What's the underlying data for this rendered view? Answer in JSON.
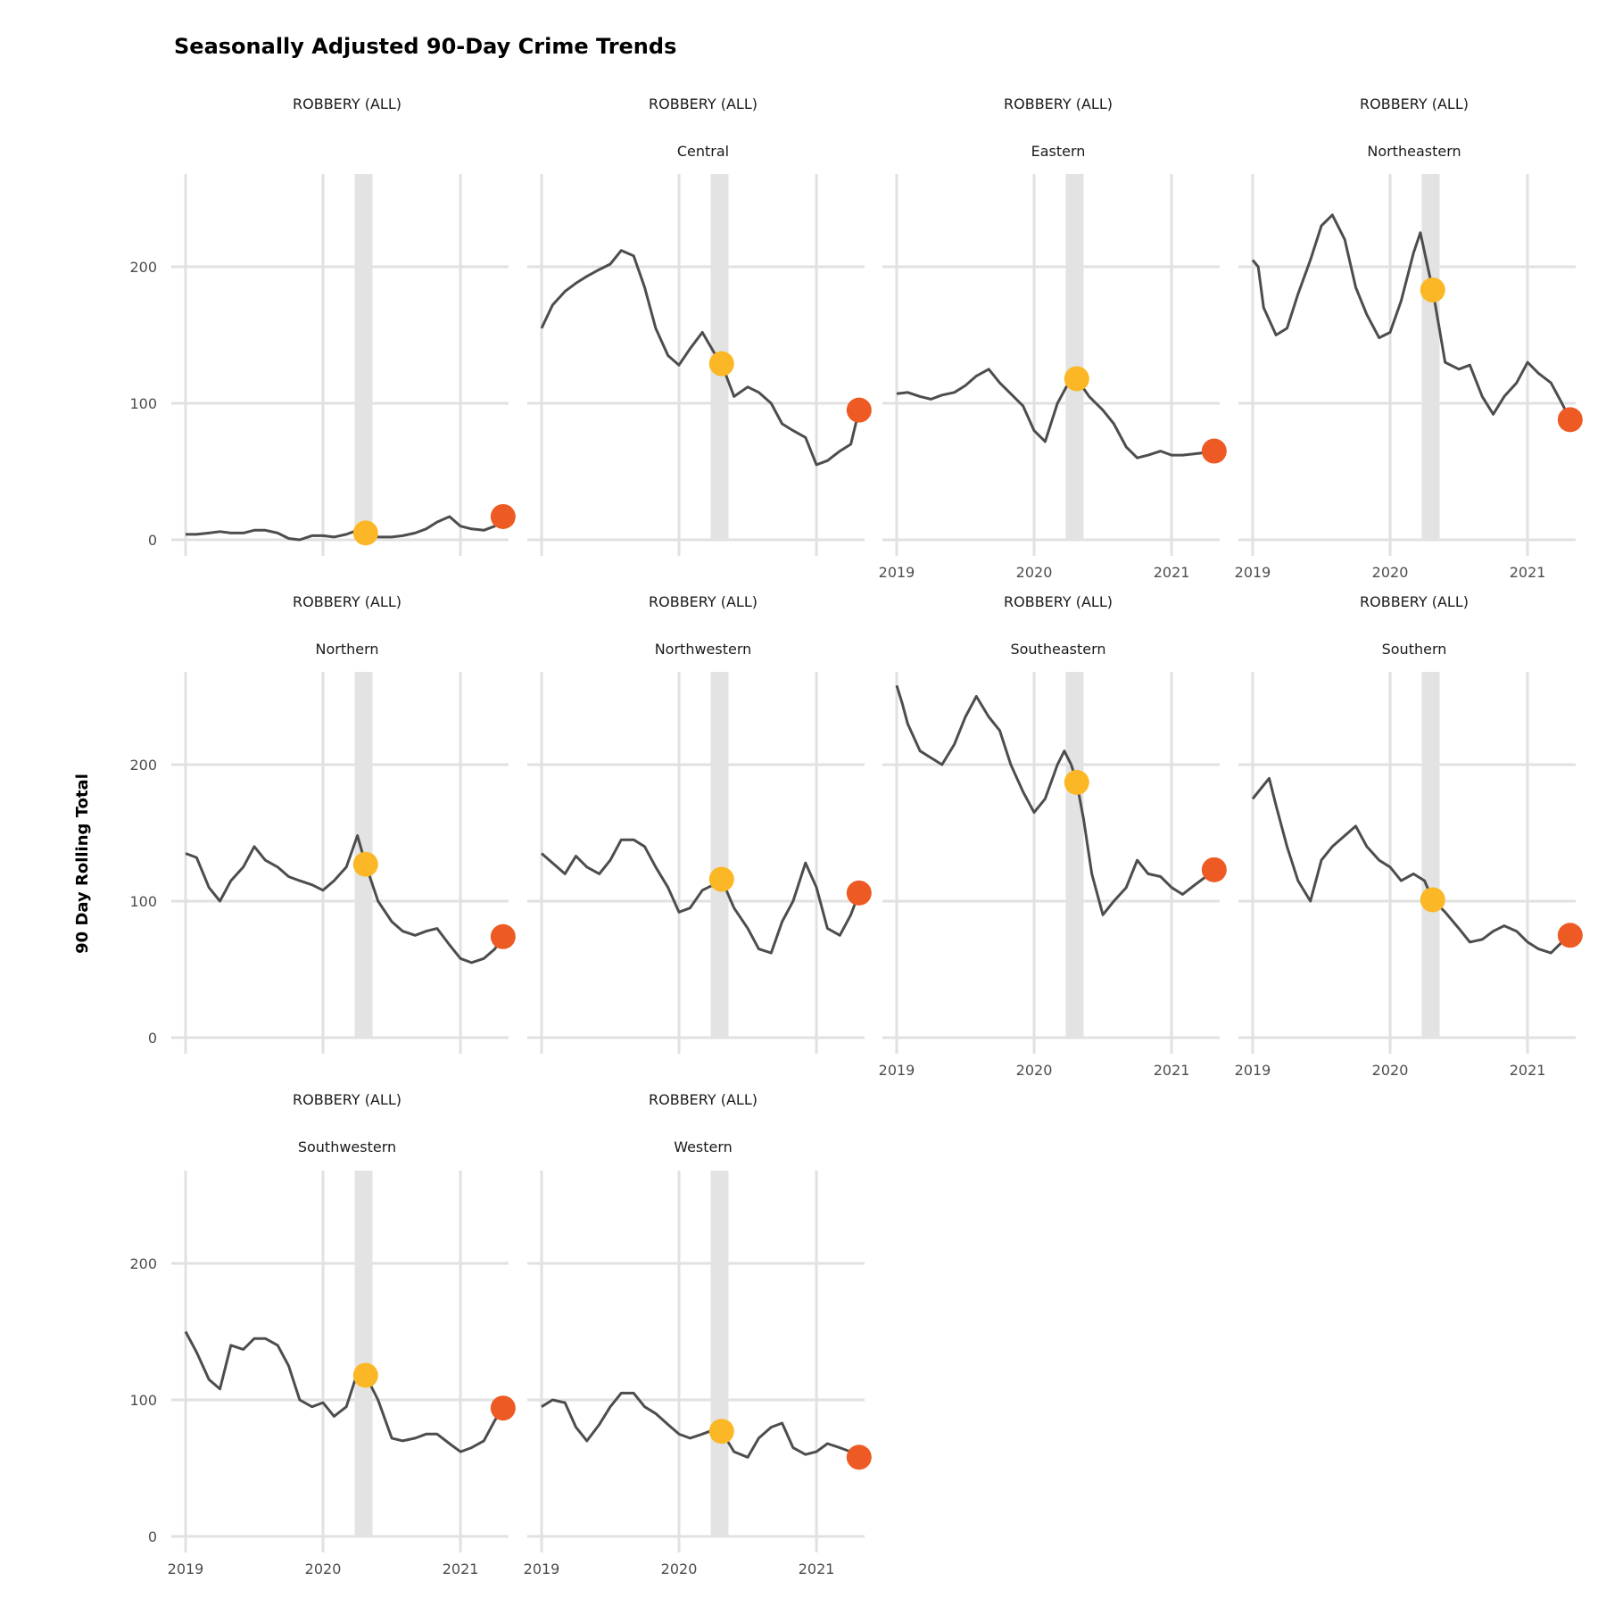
{
  "chart_data": {
    "type": "line",
    "title": "Seasonally Adjusted 90-Day Crime Trends",
    "ylabel": "90 Day Rolling Total",
    "xlabel": "",
    "xlim": [
      2019.0,
      2021.35
    ],
    "ylim": [
      0,
      268
    ],
    "x_ticks": [
      "2019",
      "2020",
      "2021"
    ],
    "y_ticks": [
      "0",
      "100",
      "200"
    ],
    "shaded_band_x": [
      2020.23,
      2020.36
    ],
    "colors": {
      "line": "#4d4d4d",
      "mid_point": "#fbb726",
      "end_point": "#ee5a24",
      "band": "#e3e3e3",
      "grid": "#e1e1e1"
    },
    "panels": [
      {
        "crime": "ROBBERY (ALL)",
        "district": "",
        "mid_point": [
          2020.31,
          5
        ],
        "end_point": [
          2021.31,
          17
        ],
        "x": [
          2019.0,
          2019.08,
          2019.17,
          2019.25,
          2019.33,
          2019.42,
          2019.5,
          2019.58,
          2019.67,
          2019.75,
          2019.83,
          2019.92,
          2020.0,
          2020.08,
          2020.17,
          2020.25,
          2020.31,
          2020.4,
          2020.5,
          2020.58,
          2020.67,
          2020.75,
          2020.83,
          2020.92,
          2021.0,
          2021.08,
          2021.17,
          2021.25,
          2021.31
        ],
        "y": [
          4,
          4,
          5,
          6,
          5,
          5,
          7,
          7,
          5,
          1,
          0,
          3,
          3,
          2,
          4,
          7,
          5,
          2,
          2,
          3,
          5,
          8,
          13,
          17,
          10,
          8,
          7,
          10,
          17
        ]
      },
      {
        "crime": "ROBBERY (ALL)",
        "district": "Central",
        "mid_point": [
          2020.31,
          129
        ],
        "end_point": [
          2021.31,
          95
        ],
        "x": [
          2019.0,
          2019.08,
          2019.17,
          2019.25,
          2019.33,
          2019.42,
          2019.5,
          2019.58,
          2019.67,
          2019.75,
          2019.83,
          2019.92,
          2020.0,
          2020.08,
          2020.17,
          2020.25,
          2020.31,
          2020.4,
          2020.5,
          2020.58,
          2020.67,
          2020.75,
          2020.83,
          2020.92,
          2021.0,
          2021.08,
          2021.17,
          2021.25,
          2021.31
        ],
        "y": [
          155,
          172,
          182,
          188,
          193,
          198,
          202,
          212,
          208,
          185,
          155,
          135,
          128,
          140,
          152,
          138,
          129,
          105,
          112,
          108,
          100,
          85,
          80,
          75,
          55,
          58,
          65,
          70,
          95
        ]
      },
      {
        "crime": "ROBBERY (ALL)",
        "district": "Eastern",
        "mid_point": [
          2020.31,
          118
        ],
        "end_point": [
          2021.31,
          65
        ],
        "x": [
          2019.0,
          2019.08,
          2019.17,
          2019.25,
          2019.33,
          2019.42,
          2019.5,
          2019.58,
          2019.67,
          2019.75,
          2019.83,
          2019.92,
          2020.0,
          2020.08,
          2020.17,
          2020.25,
          2020.31,
          2020.4,
          2020.5,
          2020.58,
          2020.67,
          2020.75,
          2020.83,
          2020.92,
          2021.0,
          2021.08,
          2021.17,
          2021.25,
          2021.31
        ],
        "y": [
          107,
          108,
          105,
          103,
          106,
          108,
          113,
          120,
          125,
          115,
          107,
          98,
          80,
          72,
          100,
          115,
          118,
          105,
          95,
          85,
          68,
          60,
          62,
          65,
          62,
          62,
          63,
          64,
          65
        ]
      },
      {
        "crime": "ROBBERY (ALL)",
        "district": "Northeastern",
        "mid_point": [
          2020.31,
          183
        ],
        "end_point": [
          2021.31,
          88
        ],
        "x": [
          2019.0,
          2019.04,
          2019.08,
          2019.17,
          2019.25,
          2019.33,
          2019.42,
          2019.5,
          2019.58,
          2019.67,
          2019.75,
          2019.83,
          2019.92,
          2020.0,
          2020.08,
          2020.17,
          2020.22,
          2020.31,
          2020.4,
          2020.5,
          2020.58,
          2020.67,
          2020.75,
          2020.83,
          2020.92,
          2021.0,
          2021.08,
          2021.17,
          2021.25,
          2021.31
        ],
        "y": [
          205,
          200,
          170,
          150,
          155,
          180,
          205,
          230,
          238,
          220,
          185,
          165,
          148,
          152,
          175,
          210,
          225,
          183,
          130,
          125,
          128,
          105,
          92,
          105,
          115,
          130,
          122,
          115,
          100,
          88
        ]
      },
      {
        "crime": "ROBBERY (ALL)",
        "district": "Northern",
        "mid_point": [
          2020.31,
          127
        ],
        "end_point": [
          2021.31,
          74
        ],
        "x": [
          2019.0,
          2019.08,
          2019.17,
          2019.25,
          2019.33,
          2019.42,
          2019.5,
          2019.58,
          2019.67,
          2019.75,
          2019.83,
          2019.92,
          2020.0,
          2020.08,
          2020.17,
          2020.25,
          2020.31,
          2020.4,
          2020.5,
          2020.58,
          2020.67,
          2020.75,
          2020.83,
          2020.92,
          2021.0,
          2021.08,
          2021.17,
          2021.25,
          2021.31
        ],
        "y": [
          135,
          132,
          110,
          100,
          115,
          125,
          140,
          130,
          125,
          118,
          115,
          112,
          108,
          115,
          125,
          148,
          127,
          100,
          85,
          78,
          75,
          78,
          80,
          68,
          58,
          55,
          58,
          65,
          74
        ]
      },
      {
        "crime": "ROBBERY (ALL)",
        "district": "Northwestern",
        "mid_point": [
          2020.31,
          116
        ],
        "end_point": [
          2021.31,
          106
        ],
        "x": [
          2019.0,
          2019.08,
          2019.17,
          2019.25,
          2019.33,
          2019.42,
          2019.5,
          2019.58,
          2019.67,
          2019.75,
          2019.83,
          2019.92,
          2020.0,
          2020.08,
          2020.17,
          2020.25,
          2020.31,
          2020.4,
          2020.5,
          2020.58,
          2020.67,
          2020.75,
          2020.83,
          2020.92,
          2021.0,
          2021.08,
          2021.17,
          2021.25,
          2021.31
        ],
        "y": [
          135,
          128,
          120,
          133,
          125,
          120,
          130,
          145,
          145,
          140,
          125,
          110,
          92,
          95,
          108,
          112,
          116,
          95,
          80,
          65,
          62,
          85,
          100,
          128,
          110,
          80,
          75,
          90,
          106
        ]
      },
      {
        "crime": "ROBBERY (ALL)",
        "district": "Southeastern",
        "mid_point": [
          2020.31,
          187
        ],
        "end_point": [
          2021.31,
          123
        ],
        "x": [
          2019.0,
          2019.04,
          2019.08,
          2019.17,
          2019.25,
          2019.33,
          2019.42,
          2019.5,
          2019.58,
          2019.67,
          2019.75,
          2019.83,
          2019.92,
          2020.0,
          2020.08,
          2020.17,
          2020.22,
          2020.27,
          2020.31,
          2020.36,
          2020.42,
          2020.5,
          2020.58,
          2020.67,
          2020.75,
          2020.83,
          2020.92,
          2021.0,
          2021.08,
          2021.17,
          2021.25,
          2021.31
        ],
        "y": [
          258,
          245,
          230,
          210,
          205,
          200,
          215,
          235,
          250,
          235,
          225,
          200,
          180,
          165,
          175,
          200,
          210,
          200,
          187,
          160,
          120,
          90,
          100,
          110,
          130,
          120,
          118,
          110,
          105,
          112,
          118,
          123
        ]
      },
      {
        "crime": "ROBBERY (ALL)",
        "district": "Southern",
        "mid_point": [
          2020.31,
          101
        ],
        "end_point": [
          2021.31,
          75
        ],
        "x": [
          2019.0,
          2019.08,
          2019.12,
          2019.17,
          2019.25,
          2019.33,
          2019.42,
          2019.5,
          2019.58,
          2019.67,
          2019.75,
          2019.83,
          2019.92,
          2020.0,
          2020.08,
          2020.17,
          2020.25,
          2020.31,
          2020.4,
          2020.5,
          2020.58,
          2020.67,
          2020.75,
          2020.83,
          2020.92,
          2021.0,
          2021.08,
          2021.17,
          2021.25,
          2021.31
        ],
        "y": [
          175,
          185,
          190,
          170,
          140,
          115,
          100,
          130,
          140,
          148,
          155,
          140,
          130,
          125,
          115,
          120,
          115,
          101,
          92,
          80,
          70,
          72,
          78,
          82,
          78,
          70,
          65,
          62,
          70,
          75
        ]
      },
      {
        "crime": "ROBBERY (ALL)",
        "district": "Southwestern",
        "mid_point": [
          2020.31,
          118
        ],
        "end_point": [
          2021.31,
          94
        ],
        "x": [
          2019.0,
          2019.08,
          2019.17,
          2019.25,
          2019.33,
          2019.42,
          2019.5,
          2019.58,
          2019.67,
          2019.75,
          2019.83,
          2019.92,
          2020.0,
          2020.08,
          2020.17,
          2020.25,
          2020.31,
          2020.4,
          2020.5,
          2020.58,
          2020.67,
          2020.75,
          2020.83,
          2020.92,
          2021.0,
          2021.08,
          2021.17,
          2021.25,
          2021.31
        ],
        "y": [
          150,
          135,
          115,
          108,
          140,
          137,
          145,
          145,
          140,
          125,
          100,
          95,
          98,
          88,
          95,
          120,
          118,
          100,
          72,
          70,
          72,
          75,
          75,
          68,
          62,
          65,
          70,
          85,
          94
        ]
      },
      {
        "crime": "ROBBERY (ALL)",
        "district": "Western",
        "mid_point": [
          2020.31,
          77
        ],
        "end_point": [
          2021.31,
          58
        ],
        "x": [
          2019.0,
          2019.08,
          2019.17,
          2019.25,
          2019.33,
          2019.42,
          2019.5,
          2019.58,
          2019.67,
          2019.75,
          2019.83,
          2019.92,
          2020.0,
          2020.08,
          2020.17,
          2020.25,
          2020.31,
          2020.4,
          2020.5,
          2020.58,
          2020.67,
          2020.75,
          2020.83,
          2020.92,
          2021.0,
          2021.08,
          2021.17,
          2021.25,
          2021.31
        ],
        "y": [
          95,
          100,
          98,
          80,
          70,
          82,
          95,
          105,
          105,
          95,
          90,
          82,
          75,
          72,
          75,
          78,
          77,
          62,
          58,
          72,
          80,
          83,
          65,
          60,
          62,
          68,
          65,
          62,
          58
        ]
      }
    ]
  }
}
